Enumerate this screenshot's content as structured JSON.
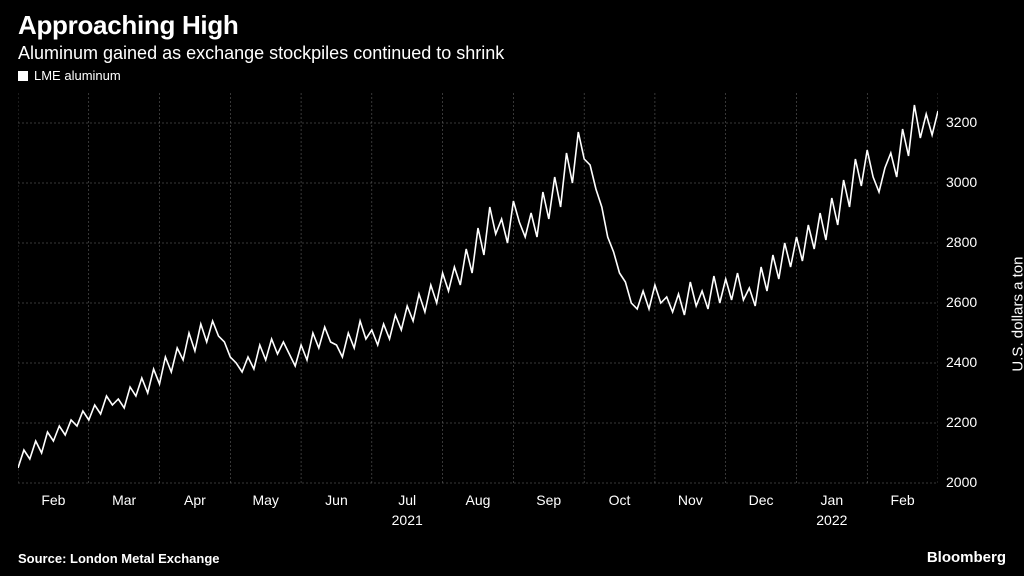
{
  "header": {
    "title": "Approaching High",
    "subtitle": "Aluminum gained as exchange stockpiles continued to shrink"
  },
  "legend": {
    "series_label": "LME aluminum",
    "series_color": "#ffffff"
  },
  "chart": {
    "type": "line",
    "background_color": "#000000",
    "line_color": "#ffffff",
    "line_width": 1.6,
    "grid_color": "#6f6f6f",
    "grid_line_width": 0.5,
    "ylim": [
      2000,
      3300
    ],
    "ytick_step": 200,
    "yticks": [
      2000,
      2200,
      2400,
      2600,
      2800,
      3000,
      3200
    ],
    "ylabel": "U.S. dollars a ton",
    "ylabel_fontsize": 15,
    "tick_fontsize": 14,
    "x_months": [
      "Feb",
      "Mar",
      "Apr",
      "May",
      "Jun",
      "Jul",
      "Aug",
      "Sep",
      "Oct",
      "Nov",
      "Dec",
      "Jan",
      "Feb"
    ],
    "x_years": {
      "2021": 5,
      "2022": 11
    },
    "series": [
      2050,
      2110,
      2080,
      2140,
      2100,
      2170,
      2140,
      2190,
      2160,
      2210,
      2190,
      2240,
      2210,
      2260,
      2230,
      2290,
      2260,
      2280,
      2250,
      2320,
      2290,
      2350,
      2300,
      2380,
      2330,
      2420,
      2370,
      2450,
      2410,
      2500,
      2440,
      2530,
      2470,
      2540,
      2490,
      2470,
      2420,
      2400,
      2370,
      2420,
      2380,
      2460,
      2410,
      2480,
      2430,
      2470,
      2430,
      2390,
      2460,
      2410,
      2500,
      2450,
      2520,
      2470,
      2460,
      2420,
      2500,
      2450,
      2540,
      2480,
      2510,
      2460,
      2530,
      2480,
      2560,
      2510,
      2590,
      2540,
      2630,
      2570,
      2660,
      2600,
      2700,
      2640,
      2720,
      2660,
      2780,
      2700,
      2850,
      2760,
      2920,
      2830,
      2880,
      2800,
      2940,
      2870,
      2820,
      2900,
      2820,
      2970,
      2880,
      3020,
      2920,
      3100,
      3000,
      3170,
      3080,
      3060,
      2980,
      2920,
      2820,
      2770,
      2700,
      2670,
      2600,
      2580,
      2640,
      2580,
      2660,
      2600,
      2620,
      2570,
      2630,
      2560,
      2670,
      2590,
      2640,
      2580,
      2690,
      2600,
      2680,
      2610,
      2700,
      2610,
      2650,
      2590,
      2720,
      2640,
      2760,
      2680,
      2800,
      2720,
      2820,
      2740,
      2860,
      2780,
      2900,
      2810,
      2950,
      2860,
      3010,
      2920,
      3080,
      2990,
      3110,
      3020,
      2970,
      3050,
      3100,
      3020,
      3180,
      3090,
      3260,
      3150,
      3230,
      3160,
      3240
    ]
  },
  "footer": {
    "source": "Source:  London Metal Exchange",
    "brand": "Bloomberg"
  },
  "colors": {
    "background": "#000000",
    "text": "#ffffff"
  }
}
